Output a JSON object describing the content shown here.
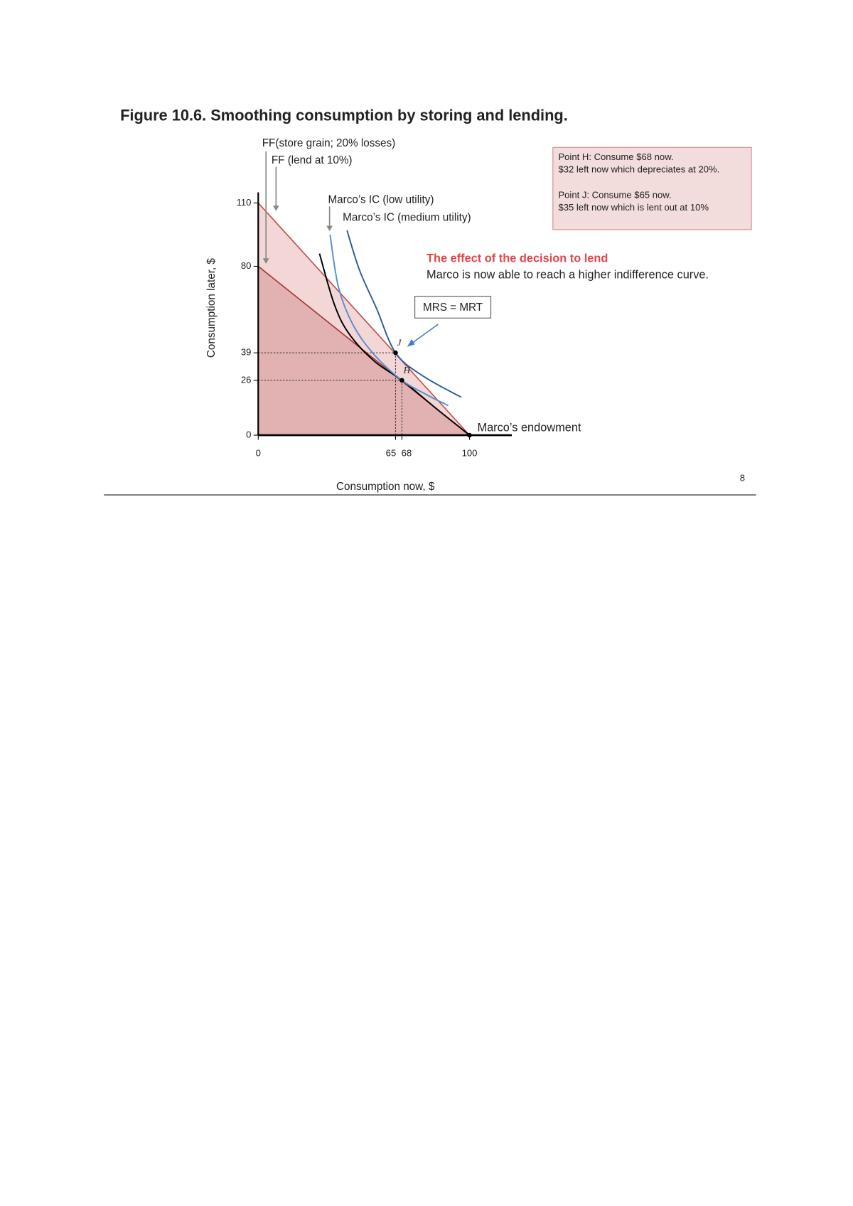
{
  "title": "Figure 10.6. Smoothing consumption by storing and lending.",
  "page_number": "8",
  "chart_data": {
    "type": "line",
    "x_label": "Consumption now, $",
    "y_label": "Consumption later, $",
    "xlim": [
      0,
      120
    ],
    "ylim": [
      0,
      115
    ],
    "xticks": [
      0,
      65,
      68,
      100
    ],
    "yticks": [
      0,
      26,
      39,
      80,
      110
    ],
    "series": [
      {
        "name": "FF (lend at 10%)",
        "color": "#c0504d",
        "fill": "#f3d6d6",
        "x": [
          0,
          100
        ],
        "values": [
          110,
          0
        ]
      },
      {
        "name": "FF(store grain; 20% losses)",
        "color": "#a8322f",
        "fill": "#e2b1b1",
        "x": [
          0,
          100
        ],
        "values": [
          80,
          0
        ]
      },
      {
        "color": "#000000",
        "x": [
          29,
          36,
          43,
          55,
          68,
          85,
          100
        ],
        "values": [
          86,
          62,
          48,
          35,
          26,
          12,
          0
        ]
      },
      {
        "name": "Marco’s IC (low utility)",
        "color": "#5b8fd0",
        "x": [
          34,
          38,
          45,
          55,
          68,
          80,
          90
        ],
        "values": [
          95,
          70,
          52,
          38,
          26,
          19,
          14
        ]
      },
      {
        "name": "Marco’s IC (medium utility)",
        "color": "#2e5f9a",
        "x": [
          42,
          48,
          56,
          65,
          78,
          96
        ],
        "values": [
          97,
          78,
          60,
          39,
          28,
          18
        ]
      }
    ],
    "points": [
      {
        "label": "H",
        "x": 68,
        "y": 26
      },
      {
        "label": "J",
        "x": 65,
        "y": 39
      }
    ],
    "endowment_label": "Marco’s endowment",
    "info_box": {
      "h": [
        "Point H: Consume $68 now.",
        "$32 left now which depreciates at 20%."
      ],
      "j": [
        "Point J: Consume $65 now.",
        "$35 left now which is lent out at 10%"
      ]
    },
    "effect_title": "The effect of the decision to lend",
    "effect_text": "Marco is now able to reach a higher indifference curve.",
    "condition": "MRS = MRT"
  }
}
